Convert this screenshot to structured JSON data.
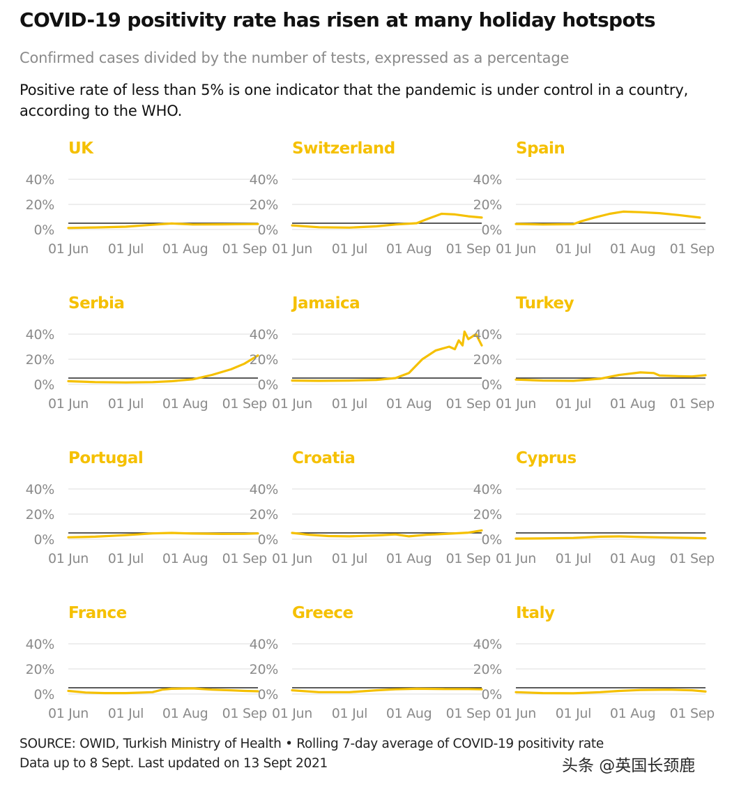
{
  "header": {
    "title": "COVID-19 positivity rate has risen at many holiday hotspots",
    "subtitle": "Confirmed cases divided by the number of tests, expressed as a percentage",
    "note": "Positive rate of less than 5% is one indicator that the pandemic is under control in a country, according to the WHO."
  },
  "footer": {
    "source_line": "SOURCE: OWID, Turkish Ministry of Health • Rolling 7-day average of COVID-19 positivity rate",
    "updated_line": "Data up to 8 Sept. Last updated on 13 Sept 2021",
    "watermark": "头条 @英国长颈鹿"
  },
  "colors": {
    "series": "#f5c000",
    "threshold": "#222222",
    "grid": "#e3e3e3",
    "tick_text": "#8a8a8a"
  },
  "chart_data": {
    "type": "line",
    "layout": "small-multiples",
    "x_unit": "date",
    "x_range": [
      "2021-06-01",
      "2021-09-08"
    ],
    "x_ticks": [
      {
        "date": "2021-06-01",
        "label": "01 Jun"
      },
      {
        "date": "2021-07-01",
        "label": "01 Jul"
      },
      {
        "date": "2021-08-01",
        "label": "01 Aug"
      },
      {
        "date": "2021-09-01",
        "label": "01 Sep"
      }
    ],
    "y_ticks": [
      {
        "value": 0,
        "label": "0%"
      },
      {
        "value": 20,
        "label": "20%"
      },
      {
        "value": 40,
        "label": "40%"
      }
    ],
    "ylim": [
      0,
      40
    ],
    "reference_line": {
      "value": 5,
      "color": "#222222"
    },
    "panels": [
      {
        "title": "UK",
        "points": [
          [
            "2021-06-01",
            1.2
          ],
          [
            "2021-06-15",
            1.6
          ],
          [
            "2021-07-01",
            2.2
          ],
          [
            "2021-07-15",
            3.8
          ],
          [
            "2021-07-25",
            4.8
          ],
          [
            "2021-08-05",
            4.0
          ],
          [
            "2021-08-20",
            4.1
          ],
          [
            "2021-09-01",
            4.3
          ],
          [
            "2021-09-08",
            4.4
          ]
        ]
      },
      {
        "title": "Switzerland",
        "points": [
          [
            "2021-06-01",
            3.2
          ],
          [
            "2021-06-15",
            1.8
          ],
          [
            "2021-07-01",
            1.5
          ],
          [
            "2021-07-15",
            2.5
          ],
          [
            "2021-07-25",
            4.0
          ],
          [
            "2021-08-05",
            5.0
          ],
          [
            "2021-08-10",
            8.0
          ],
          [
            "2021-08-18",
            12.5
          ],
          [
            "2021-08-25",
            12.0
          ],
          [
            "2021-09-01",
            10.5
          ],
          [
            "2021-09-08",
            9.5
          ]
        ]
      },
      {
        "title": "Spain",
        "points": [
          [
            "2021-06-01",
            4.4
          ],
          [
            "2021-06-15",
            4.0
          ],
          [
            "2021-07-01",
            4.2
          ],
          [
            "2021-07-05",
            6.5
          ],
          [
            "2021-07-12",
            9.5
          ],
          [
            "2021-07-20",
            12.5
          ],
          [
            "2021-07-27",
            14.2
          ],
          [
            "2021-08-05",
            13.8
          ],
          [
            "2021-08-15",
            13.0
          ],
          [
            "2021-08-25",
            11.5
          ],
          [
            "2021-09-01",
            10.2
          ],
          [
            "2021-09-05",
            9.5
          ]
        ]
      },
      {
        "title": "Serbia",
        "points": [
          [
            "2021-06-01",
            2.5
          ],
          [
            "2021-06-15",
            1.8
          ],
          [
            "2021-07-01",
            1.5
          ],
          [
            "2021-07-15",
            1.8
          ],
          [
            "2021-07-25",
            2.5
          ],
          [
            "2021-08-05",
            4.0
          ],
          [
            "2021-08-15",
            7.5
          ],
          [
            "2021-08-25",
            12.0
          ],
          [
            "2021-09-01",
            16.5
          ],
          [
            "2021-09-08",
            23.0
          ]
        ]
      },
      {
        "title": "Jamaica",
        "points": [
          [
            "2021-06-01",
            3.0
          ],
          [
            "2021-06-15",
            2.8
          ],
          [
            "2021-07-01",
            3.0
          ],
          [
            "2021-07-15",
            3.5
          ],
          [
            "2021-07-25",
            5.0
          ],
          [
            "2021-08-01",
            9.0
          ],
          [
            "2021-08-08",
            20.0
          ],
          [
            "2021-08-15",
            27.0
          ],
          [
            "2021-08-22",
            30.0
          ],
          [
            "2021-08-25",
            28.0
          ],
          [
            "2021-08-27",
            35.0
          ],
          [
            "2021-08-29",
            31.0
          ],
          [
            "2021-08-30",
            42.0
          ],
          [
            "2021-09-01",
            36.0
          ],
          [
            "2021-09-03",
            38.0
          ],
          [
            "2021-09-05",
            40.0
          ],
          [
            "2021-09-08",
            31.0
          ]
        ]
      },
      {
        "title": "Turkey",
        "points": [
          [
            "2021-06-01",
            3.8
          ],
          [
            "2021-06-15",
            3.0
          ],
          [
            "2021-07-01",
            2.8
          ],
          [
            "2021-07-15",
            4.5
          ],
          [
            "2021-07-25",
            7.5
          ],
          [
            "2021-08-05",
            9.5
          ],
          [
            "2021-08-12",
            9.0
          ],
          [
            "2021-08-15",
            7.0
          ],
          [
            "2021-08-25",
            6.5
          ],
          [
            "2021-09-01",
            6.3
          ],
          [
            "2021-09-08",
            7.3
          ]
        ]
      },
      {
        "title": "Portugal",
        "points": [
          [
            "2021-06-01",
            1.5
          ],
          [
            "2021-06-15",
            2.0
          ],
          [
            "2021-07-01",
            3.2
          ],
          [
            "2021-07-15",
            4.6
          ],
          [
            "2021-07-25",
            5.0
          ],
          [
            "2021-08-05",
            4.5
          ],
          [
            "2021-08-20",
            4.2
          ],
          [
            "2021-09-01",
            4.3
          ],
          [
            "2021-09-08",
            4.6
          ]
        ]
      },
      {
        "title": "Croatia",
        "points": [
          [
            "2021-06-01",
            5.0
          ],
          [
            "2021-06-10",
            3.5
          ],
          [
            "2021-06-20",
            2.5
          ],
          [
            "2021-07-01",
            2.3
          ],
          [
            "2021-07-15",
            3.0
          ],
          [
            "2021-07-25",
            3.8
          ],
          [
            "2021-08-01",
            2.3
          ],
          [
            "2021-08-10",
            3.5
          ],
          [
            "2021-08-20",
            4.2
          ],
          [
            "2021-09-01",
            5.2
          ],
          [
            "2021-09-08",
            7.0
          ]
        ]
      },
      {
        "title": "Cyprus",
        "points": [
          [
            "2021-06-01",
            0.5
          ],
          [
            "2021-06-15",
            0.6
          ],
          [
            "2021-07-01",
            1.0
          ],
          [
            "2021-07-15",
            2.0
          ],
          [
            "2021-07-25",
            2.2
          ],
          [
            "2021-08-05",
            1.8
          ],
          [
            "2021-08-20",
            1.3
          ],
          [
            "2021-09-01",
            1.0
          ],
          [
            "2021-09-08",
            0.8
          ]
        ]
      },
      {
        "title": "France",
        "points": [
          [
            "2021-06-01",
            2.5
          ],
          [
            "2021-06-10",
            1.2
          ],
          [
            "2021-06-20",
            0.8
          ],
          [
            "2021-07-01",
            0.8
          ],
          [
            "2021-07-15",
            1.5
          ],
          [
            "2021-07-20",
            3.5
          ],
          [
            "2021-07-25",
            4.2
          ],
          [
            "2021-08-05",
            4.5
          ],
          [
            "2021-08-15",
            3.5
          ],
          [
            "2021-08-25",
            3.0
          ],
          [
            "2021-09-01",
            2.5
          ],
          [
            "2021-09-08",
            2.2
          ]
        ]
      },
      {
        "title": "Greece",
        "points": [
          [
            "2021-06-01",
            3.0
          ],
          [
            "2021-06-15",
            1.5
          ],
          [
            "2021-07-01",
            1.5
          ],
          [
            "2021-07-15",
            3.0
          ],
          [
            "2021-07-25",
            3.8
          ],
          [
            "2021-08-05",
            4.2
          ],
          [
            "2021-08-20",
            4.0
          ],
          [
            "2021-09-01",
            4.0
          ],
          [
            "2021-09-08",
            3.8
          ]
        ]
      },
      {
        "title": "Italy",
        "points": [
          [
            "2021-06-01",
            1.5
          ],
          [
            "2021-06-15",
            0.8
          ],
          [
            "2021-07-01",
            0.6
          ],
          [
            "2021-07-15",
            1.5
          ],
          [
            "2021-07-25",
            2.5
          ],
          [
            "2021-08-05",
            3.2
          ],
          [
            "2021-08-20",
            3.5
          ],
          [
            "2021-09-01",
            3.0
          ],
          [
            "2021-09-08",
            2.0
          ]
        ]
      }
    ]
  }
}
